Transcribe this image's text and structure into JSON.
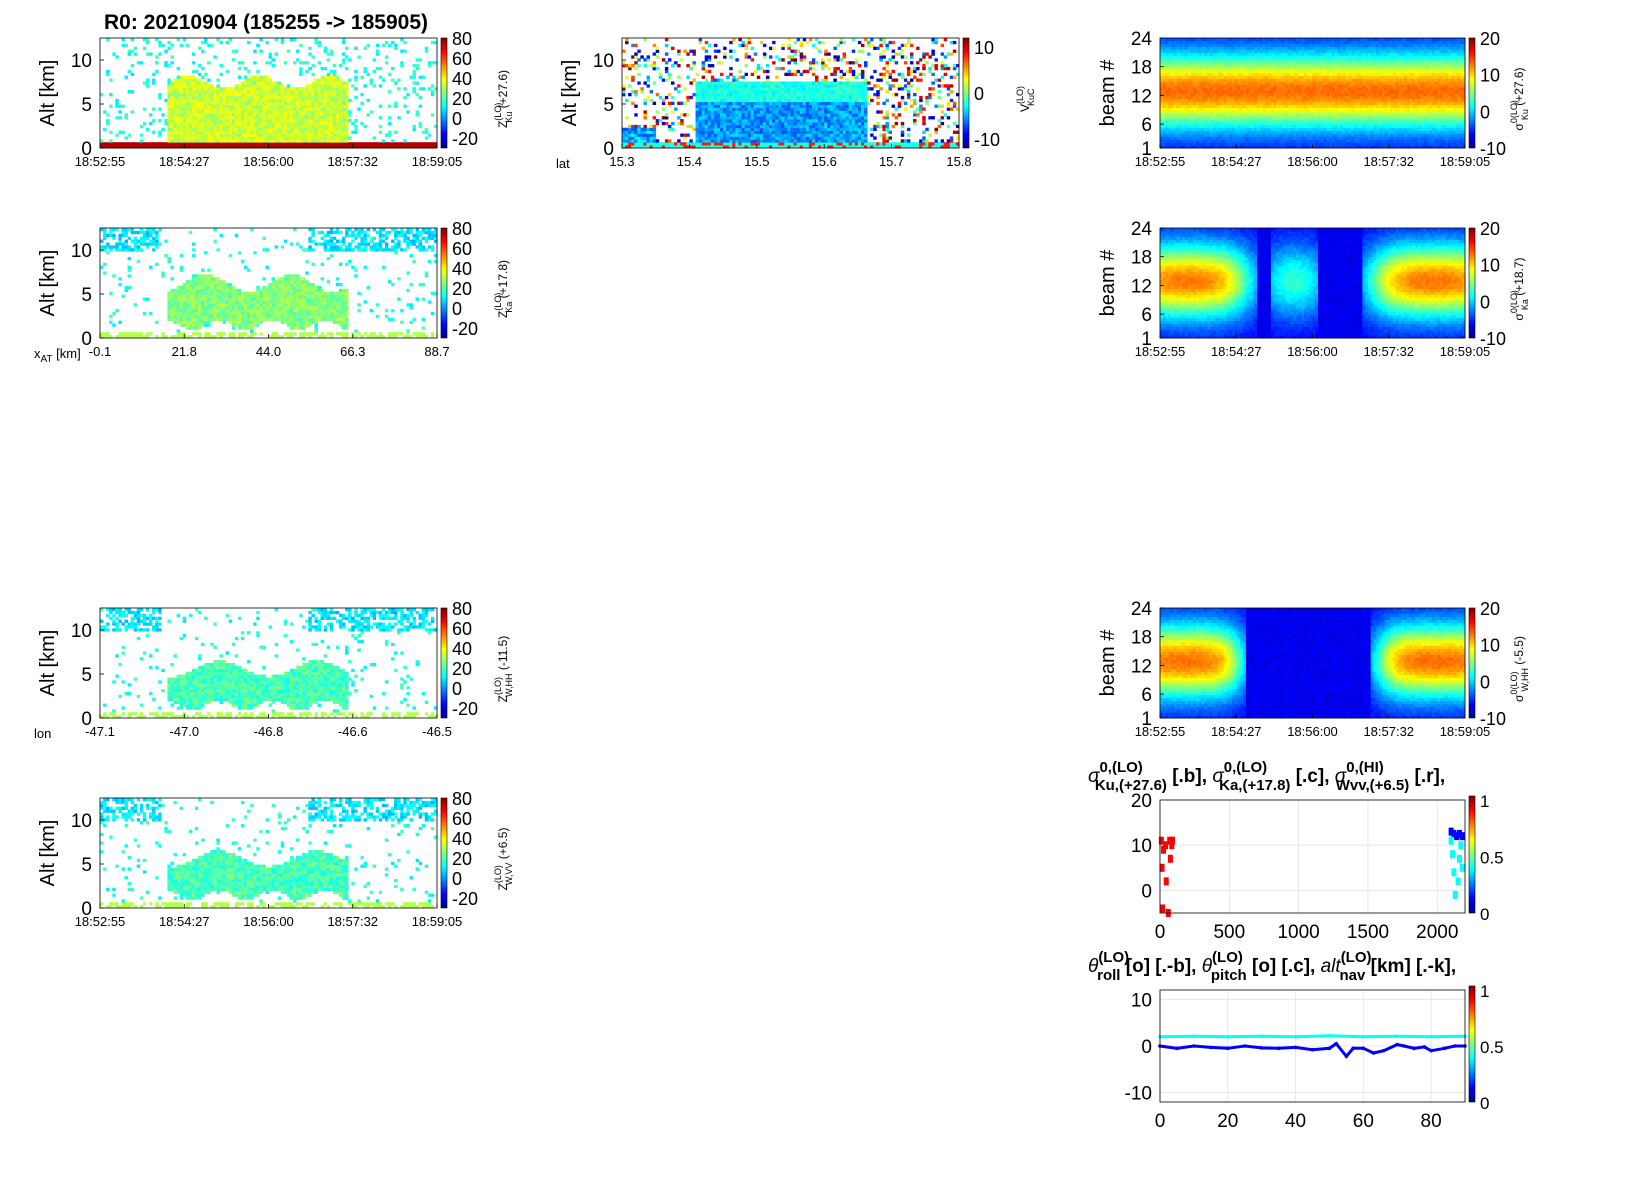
{
  "figure": {
    "title": "R0:  20210904 (185255 -> 185905)"
  },
  "colors": {
    "jet": [
      "#00008f",
      "#0000ff",
      "#0080ff",
      "#00ffff",
      "#80ff80",
      "#ffff00",
      "#ff8000",
      "#ff0000",
      "#800000"
    ]
  },
  "chart_data": [
    {
      "id": "zku",
      "type": "heatmap",
      "ylabel": "Alt [km]",
      "yticks": [
        "0",
        "5",
        "10"
      ],
      "ylim": [
        0,
        12.5
      ],
      "xticks": [
        "18:52:55",
        "18:54:27",
        "18:56:00",
        "18:57:32",
        "18:59:05"
      ],
      "colorbar": {
        "label_main": "Z",
        "label_sup": "(LO)",
        "label_sub": "Ku",
        "label_tail": " (+27.6)",
        "ticks": [
          "80",
          "60",
          "40",
          "20",
          "0",
          "-20"
        ],
        "range": [
          -30,
          80
        ]
      }
    },
    {
      "id": "vel",
      "type": "heatmap",
      "ylabel": "Alt [km]",
      "yticks": [
        "0",
        "5",
        "10"
      ],
      "ylim": [
        0,
        12.5
      ],
      "xprefix": "lat",
      "xticks": [
        "15.3",
        "15.4",
        "15.5",
        "15.6",
        "15.7",
        "15.8"
      ],
      "colorbar": {
        "label_main": "V",
        "label_sup": "(LO)",
        "label_sub": "KuC",
        "label_tail": "",
        "ticks": [
          "10",
          "0",
          "-10"
        ],
        "range": [
          -12,
          12
        ]
      }
    },
    {
      "id": "sku",
      "type": "heatmap",
      "ylabel": "beam #",
      "yticks": [
        "1",
        "6",
        "12",
        "18",
        "24"
      ],
      "ylim": [
        1,
        24
      ],
      "xticks": [
        "18:52:55",
        "18:54:27",
        "18:56:00",
        "18:57:32",
        "18:59:05"
      ],
      "colorbar": {
        "label_main": "σ",
        "label_sup": "0(LO)",
        "label_sub": "Ku",
        "label_tail": " (+27.6)",
        "ticks": [
          "20",
          "10",
          "0",
          "-10"
        ],
        "range": [
          -10,
          20
        ]
      }
    },
    {
      "id": "zka",
      "type": "heatmap",
      "ylabel": "Alt [km]",
      "yticks": [
        "0",
        "5",
        "10"
      ],
      "ylim": [
        0,
        12.5
      ],
      "xprefix": "x",
      "xprefix_sub": "AT",
      "xprefix_tail": " [km]",
      "xticks": [
        "-0.1",
        "21.8",
        "44.0",
        "66.3",
        "88.7"
      ],
      "colorbar": {
        "label_main": "Z",
        "label_sup": "(LO)",
        "label_sub": "Ka",
        "label_tail": " (+17.8)",
        "ticks": [
          "80",
          "60",
          "40",
          "20",
          "0",
          "-20"
        ],
        "range": [
          -30,
          80
        ]
      }
    },
    {
      "id": "ska",
      "type": "heatmap",
      "ylabel": "beam #",
      "yticks": [
        "1",
        "6",
        "12",
        "18",
        "24"
      ],
      "ylim": [
        1,
        24
      ],
      "xticks": [
        "18:52:55",
        "18:54:27",
        "18:56:00",
        "18:57:32",
        "18:59:05"
      ],
      "colorbar": {
        "label_main": "σ",
        "label_sup": "0(LO)",
        "label_sub": "Ka",
        "label_tail": " (+18.7)",
        "ticks": [
          "20",
          "10",
          "0",
          "-10"
        ],
        "range": [
          -10,
          20
        ]
      }
    },
    {
      "id": "zwh",
      "type": "heatmap",
      "ylabel": "Alt [km]",
      "yticks": [
        "0",
        "5",
        "10"
      ],
      "ylim": [
        0,
        12.5
      ],
      "xprefix": "lon",
      "xticks": [
        "-47.1",
        "-47.0",
        "-46.8",
        "-46.6",
        "-46.5"
      ],
      "colorbar": {
        "label_main": "Z",
        "label_sup": "(LO)",
        "label_sub": "W,HH",
        "label_tail": " (-11.5)",
        "ticks": [
          "80",
          "60",
          "40",
          "20",
          "0",
          "-20"
        ],
        "range": [
          -30,
          80
        ]
      }
    },
    {
      "id": "swh",
      "type": "heatmap",
      "ylabel": "beam #",
      "yticks": [
        "1",
        "6",
        "12",
        "18",
        "24"
      ],
      "ylim": [
        1,
        24
      ],
      "xticks": [
        "18:52:55",
        "18:54:27",
        "18:56:00",
        "18:57:32",
        "18:59:05"
      ],
      "colorbar": {
        "label_main": "σ",
        "label_sup": "0(LO)",
        "label_sub": "W,HH",
        "label_tail": " (-5.5)",
        "ticks": [
          "20",
          "10",
          "0",
          "-10"
        ],
        "range": [
          -10,
          20
        ]
      }
    },
    {
      "id": "zwv",
      "type": "heatmap",
      "ylabel": "Alt [km]",
      "yticks": [
        "0",
        "5",
        "10"
      ],
      "ylim": [
        0,
        12.5
      ],
      "xticks": [
        "18:52:55",
        "18:54:27",
        "18:56:00",
        "18:57:32",
        "18:59:05"
      ],
      "colorbar": {
        "label_main": "Z",
        "label_sup": "(LO)",
        "label_sub": "W,VV",
        "label_tail": " (+6.5)",
        "ticks": [
          "80",
          "60",
          "40",
          "20",
          "0",
          "-20"
        ],
        "range": [
          -30,
          80
        ]
      }
    },
    {
      "id": "sigma_line",
      "type": "scatter",
      "title_parts": [
        {
          "main": "σ",
          "sup": "0,(LO)",
          "sub": "Ku,(+27.6)",
          "tail": " [.b],  "
        },
        {
          "main": "σ",
          "sup": "0,(LO)",
          "sub": "Ka,(+17.8)",
          "tail": " [.c],  "
        },
        {
          "main": "σ",
          "sup": "0,(HI)",
          "sub": "Wvv,(+6.5)",
          "tail": " [.r],"
        }
      ],
      "xticks": [
        "0",
        "500",
        "1000",
        "1500",
        "2000"
      ],
      "xlim": [
        0,
        2200
      ],
      "yticks": [
        "0",
        "10",
        "20"
      ],
      "ylim": [
        -5,
        20
      ],
      "colorbar": {
        "ticks": [
          "0",
          "0.5",
          "1"
        ]
      },
      "series": [
        {
          "color": "#ff0000",
          "points": [
            [
              10,
              11
            ],
            [
              15,
              5
            ],
            [
              20,
              -4
            ],
            [
              25,
              9
            ],
            [
              40,
              10
            ],
            [
              45,
              2
            ],
            [
              60,
              -5
            ],
            [
              70,
              11
            ],
            [
              75,
              7
            ],
            [
              85,
              10
            ],
            [
              90,
              11
            ]
          ]
        },
        {
          "color": "#0000ff",
          "points": [
            [
              2100,
              13
            ],
            [
              2120,
              12.5
            ],
            [
              2140,
              12
            ],
            [
              2160,
              12.5
            ],
            [
              2180,
              12
            ]
          ]
        },
        {
          "color": "#00ffff",
          "points": [
            [
              2100,
              11
            ],
            [
              2110,
              8
            ],
            [
              2120,
              4
            ],
            [
              2130,
              -1
            ],
            [
              2150,
              2
            ],
            [
              2160,
              7
            ],
            [
              2170,
              10
            ],
            [
              2180,
              5
            ]
          ]
        }
      ]
    },
    {
      "id": "attitude_line",
      "type": "line",
      "title_parts": [
        {
          "main": "θ",
          "sup": "(LO)",
          "sub": "roll",
          "tail": " [o] [.-b],  "
        },
        {
          "main": "θ",
          "sup": "(LO)",
          "sub": "pitch",
          "tail": " [o] [.c],  "
        },
        {
          "main": "alt",
          "sup": "(LO)",
          "sub": "nav",
          "tail": " [km] [.-k],"
        }
      ],
      "xticks": [
        "0",
        "20",
        "40",
        "60",
        "80"
      ],
      "xlim": [
        0,
        90
      ],
      "yticks": [
        "-10",
        "0",
        "10"
      ],
      "ylim": [
        -12,
        12
      ],
      "colorbar": {
        "ticks": [
          "0",
          "0.5",
          "1"
        ]
      },
      "series": [
        {
          "color": "#0000ff",
          "x": [
            0,
            5,
            10,
            15,
            20,
            25,
            30,
            35,
            40,
            45,
            50,
            52,
            55,
            57,
            60,
            63,
            66,
            70,
            72,
            75,
            78,
            80,
            84,
            87,
            90
          ],
          "y": [
            0,
            -0.5,
            0,
            -0.3,
            -0.5,
            0,
            -0.4,
            -0.5,
            -0.3,
            -0.8,
            -0.5,
            0.5,
            -2.2,
            -0.5,
            -0.5,
            -1.5,
            -1.0,
            0.3,
            0,
            -0.5,
            -0.2,
            -1.0,
            -0.5,
            0,
            0
          ]
        },
        {
          "color": "#00ffff",
          "x": [
            0,
            10,
            20,
            30,
            40,
            50,
            60,
            70,
            80,
            90
          ],
          "y": [
            2.0,
            2.1,
            2.0,
            2.1,
            2.0,
            2.2,
            2.0,
            2.1,
            2.0,
            2.1
          ]
        }
      ]
    }
  ]
}
